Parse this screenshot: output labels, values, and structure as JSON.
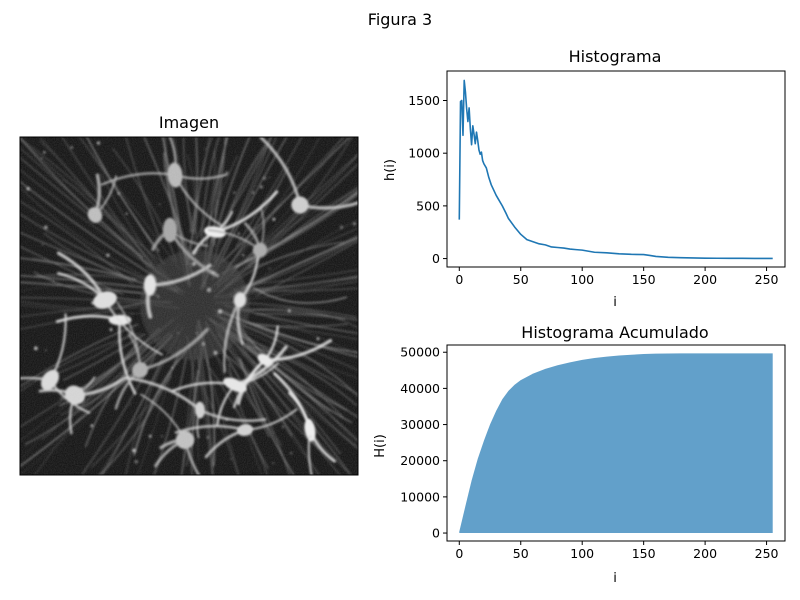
{
  "figure": {
    "title": "Figura 3"
  },
  "image_panel": {
    "title": "Imagen"
  },
  "chart_data": [
    {
      "type": "line",
      "title": "Histograma",
      "xlabel": "i",
      "ylabel": "h(i)",
      "xlim": [
        -10,
        265
      ],
      "ylim": [
        -80,
        1780
      ],
      "x_ticks": [
        0,
        50,
        100,
        150,
        200,
        250
      ],
      "y_ticks": [
        0,
        500,
        1000,
        1500
      ],
      "color": "#1f77b4",
      "x": [
        0,
        1,
        2,
        3,
        4,
        5,
        6,
        7,
        8,
        9,
        10,
        11,
        12,
        13,
        14,
        15,
        16,
        17,
        18,
        19,
        20,
        22,
        24,
        26,
        28,
        30,
        32,
        35,
        38,
        40,
        45,
        50,
        55,
        60,
        65,
        70,
        75,
        80,
        85,
        90,
        95,
        100,
        110,
        120,
        130,
        140,
        150,
        155,
        160,
        170,
        180,
        190,
        200,
        210,
        220,
        230,
        240,
        250,
        255
      ],
      "values": [
        370,
        1490,
        1500,
        1170,
        1690,
        1580,
        1420,
        1300,
        1430,
        1230,
        1080,
        1260,
        1180,
        1090,
        1200,
        1120,
        1030,
        990,
        1010,
        930,
        900,
        860,
        770,
        700,
        650,
        600,
        560,
        500,
        430,
        380,
        300,
        230,
        180,
        160,
        140,
        130,
        110,
        105,
        100,
        90,
        85,
        80,
        60,
        55,
        45,
        40,
        38,
        30,
        20,
        12,
        8,
        6,
        4,
        3,
        2,
        2,
        1,
        1,
        1
      ]
    },
    {
      "type": "area",
      "title": "Histograma Acumulado",
      "xlabel": "i",
      "ylabel": "H(i)",
      "xlim": [
        -10,
        265
      ],
      "ylim": [
        -2200,
        52000
      ],
      "x_ticks": [
        0,
        50,
        100,
        150,
        200,
        250
      ],
      "y_ticks": [
        0,
        10000,
        20000,
        30000,
        40000,
        50000
      ],
      "color": "#1f77b4",
      "fill_opacity": 0.7,
      "x": [
        0,
        5,
        10,
        15,
        20,
        25,
        30,
        35,
        40,
        45,
        50,
        60,
        70,
        80,
        90,
        100,
        110,
        120,
        130,
        140,
        150,
        160,
        170,
        180,
        190,
        200,
        220,
        240,
        255
      ],
      "values": [
        400,
        7500,
        14500,
        20500,
        25500,
        30000,
        33800,
        37000,
        39300,
        41000,
        42300,
        44100,
        45400,
        46400,
        47200,
        47900,
        48400,
        48800,
        49100,
        49300,
        49500,
        49600,
        49650,
        49680,
        49690,
        49700,
        49700,
        49700,
        49700
      ]
    }
  ]
}
